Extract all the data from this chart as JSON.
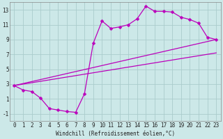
{
  "xlabel": "Windchill (Refroidissement éolien,°C)",
  "bg_color": "#cce8e8",
  "grid_color": "#aacccc",
  "line_color": "#bb00bb",
  "xlim": [
    -0.5,
    23.5
  ],
  "ylim": [
    -2.0,
    14.0
  ],
  "xticks": [
    0,
    1,
    2,
    3,
    4,
    5,
    6,
    7,
    8,
    9,
    10,
    11,
    12,
    13,
    14,
    15,
    16,
    17,
    18,
    19,
    20,
    21,
    22,
    23
  ],
  "yticks": [
    -1,
    1,
    3,
    5,
    7,
    9,
    11,
    13
  ],
  "series1_x": [
    0,
    1,
    2,
    3,
    4,
    5,
    6,
    7,
    8,
    9,
    10,
    11,
    12,
    13,
    14,
    15,
    16,
    17,
    18,
    19,
    20,
    21,
    22,
    23
  ],
  "series1_y": [
    2.8,
    2.2,
    2.0,
    1.1,
    -0.3,
    -0.5,
    -0.7,
    -0.8,
    1.7,
    8.5,
    11.5,
    10.5,
    10.7,
    11.0,
    11.8,
    13.5,
    12.8,
    12.8,
    12.7,
    12.0,
    11.7,
    11.2,
    9.3,
    9.0
  ],
  "series2_x": [
    0,
    23
  ],
  "series2_y": [
    2.8,
    9.0
  ],
  "series3_x": [
    0,
    23
  ],
  "series3_y": [
    2.8,
    7.2
  ],
  "tick_fontsize": 5.5,
  "xlabel_fontsize": 5.5,
  "marker_size": 2.5,
  "line_width": 0.9
}
